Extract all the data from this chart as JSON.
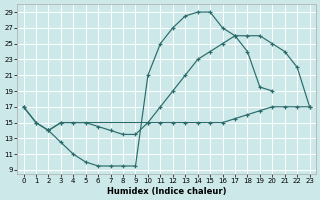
{
  "xlabel": "Humidex (Indice chaleur)",
  "bg_color": "#cce8e8",
  "grid_color": "#ffffff",
  "line_color": "#2a6b6b",
  "xlim_min": -0.5,
  "xlim_max": 23.5,
  "ylim_min": 8.5,
  "ylim_max": 30.0,
  "xticks": [
    0,
    1,
    2,
    3,
    4,
    5,
    6,
    7,
    8,
    9,
    10,
    11,
    12,
    13,
    14,
    15,
    16,
    17,
    18,
    19,
    20,
    21,
    22,
    23
  ],
  "yticks": [
    9,
    11,
    13,
    15,
    17,
    19,
    21,
    23,
    25,
    27,
    29
  ],
  "curve1_x": [
    0,
    1,
    2,
    3,
    4,
    5,
    6,
    7,
    8,
    9,
    10,
    11,
    12,
    13,
    14,
    15,
    16,
    17,
    18,
    19,
    20
  ],
  "curve1_y": [
    17,
    15,
    14,
    12.5,
    11,
    10,
    9.5,
    9.5,
    9.5,
    9.5,
    21,
    25,
    27,
    28.5,
    29,
    29,
    27,
    26,
    24,
    19.5,
    19
  ],
  "curve2_x": [
    0,
    1,
    2,
    3,
    10,
    11,
    12,
    13,
    14,
    15,
    16,
    17,
    18,
    19,
    20,
    21,
    22,
    23
  ],
  "curve2_y": [
    17,
    15,
    14,
    15,
    15,
    17,
    19,
    21,
    23,
    24,
    25,
    26,
    26,
    26,
    25,
    24,
    22,
    17
  ],
  "curve3_x": [
    2,
    3,
    4,
    5,
    6,
    7,
    8,
    9,
    10,
    11,
    12,
    13,
    14,
    15,
    16,
    17,
    18,
    19,
    20,
    21,
    22,
    23
  ],
  "curve3_y": [
    14,
    15,
    15,
    15,
    14.5,
    14,
    13.5,
    13.5,
    15,
    15,
    15,
    15,
    15,
    15,
    15,
    15.5,
    16,
    16.5,
    17,
    17,
    17,
    17
  ]
}
